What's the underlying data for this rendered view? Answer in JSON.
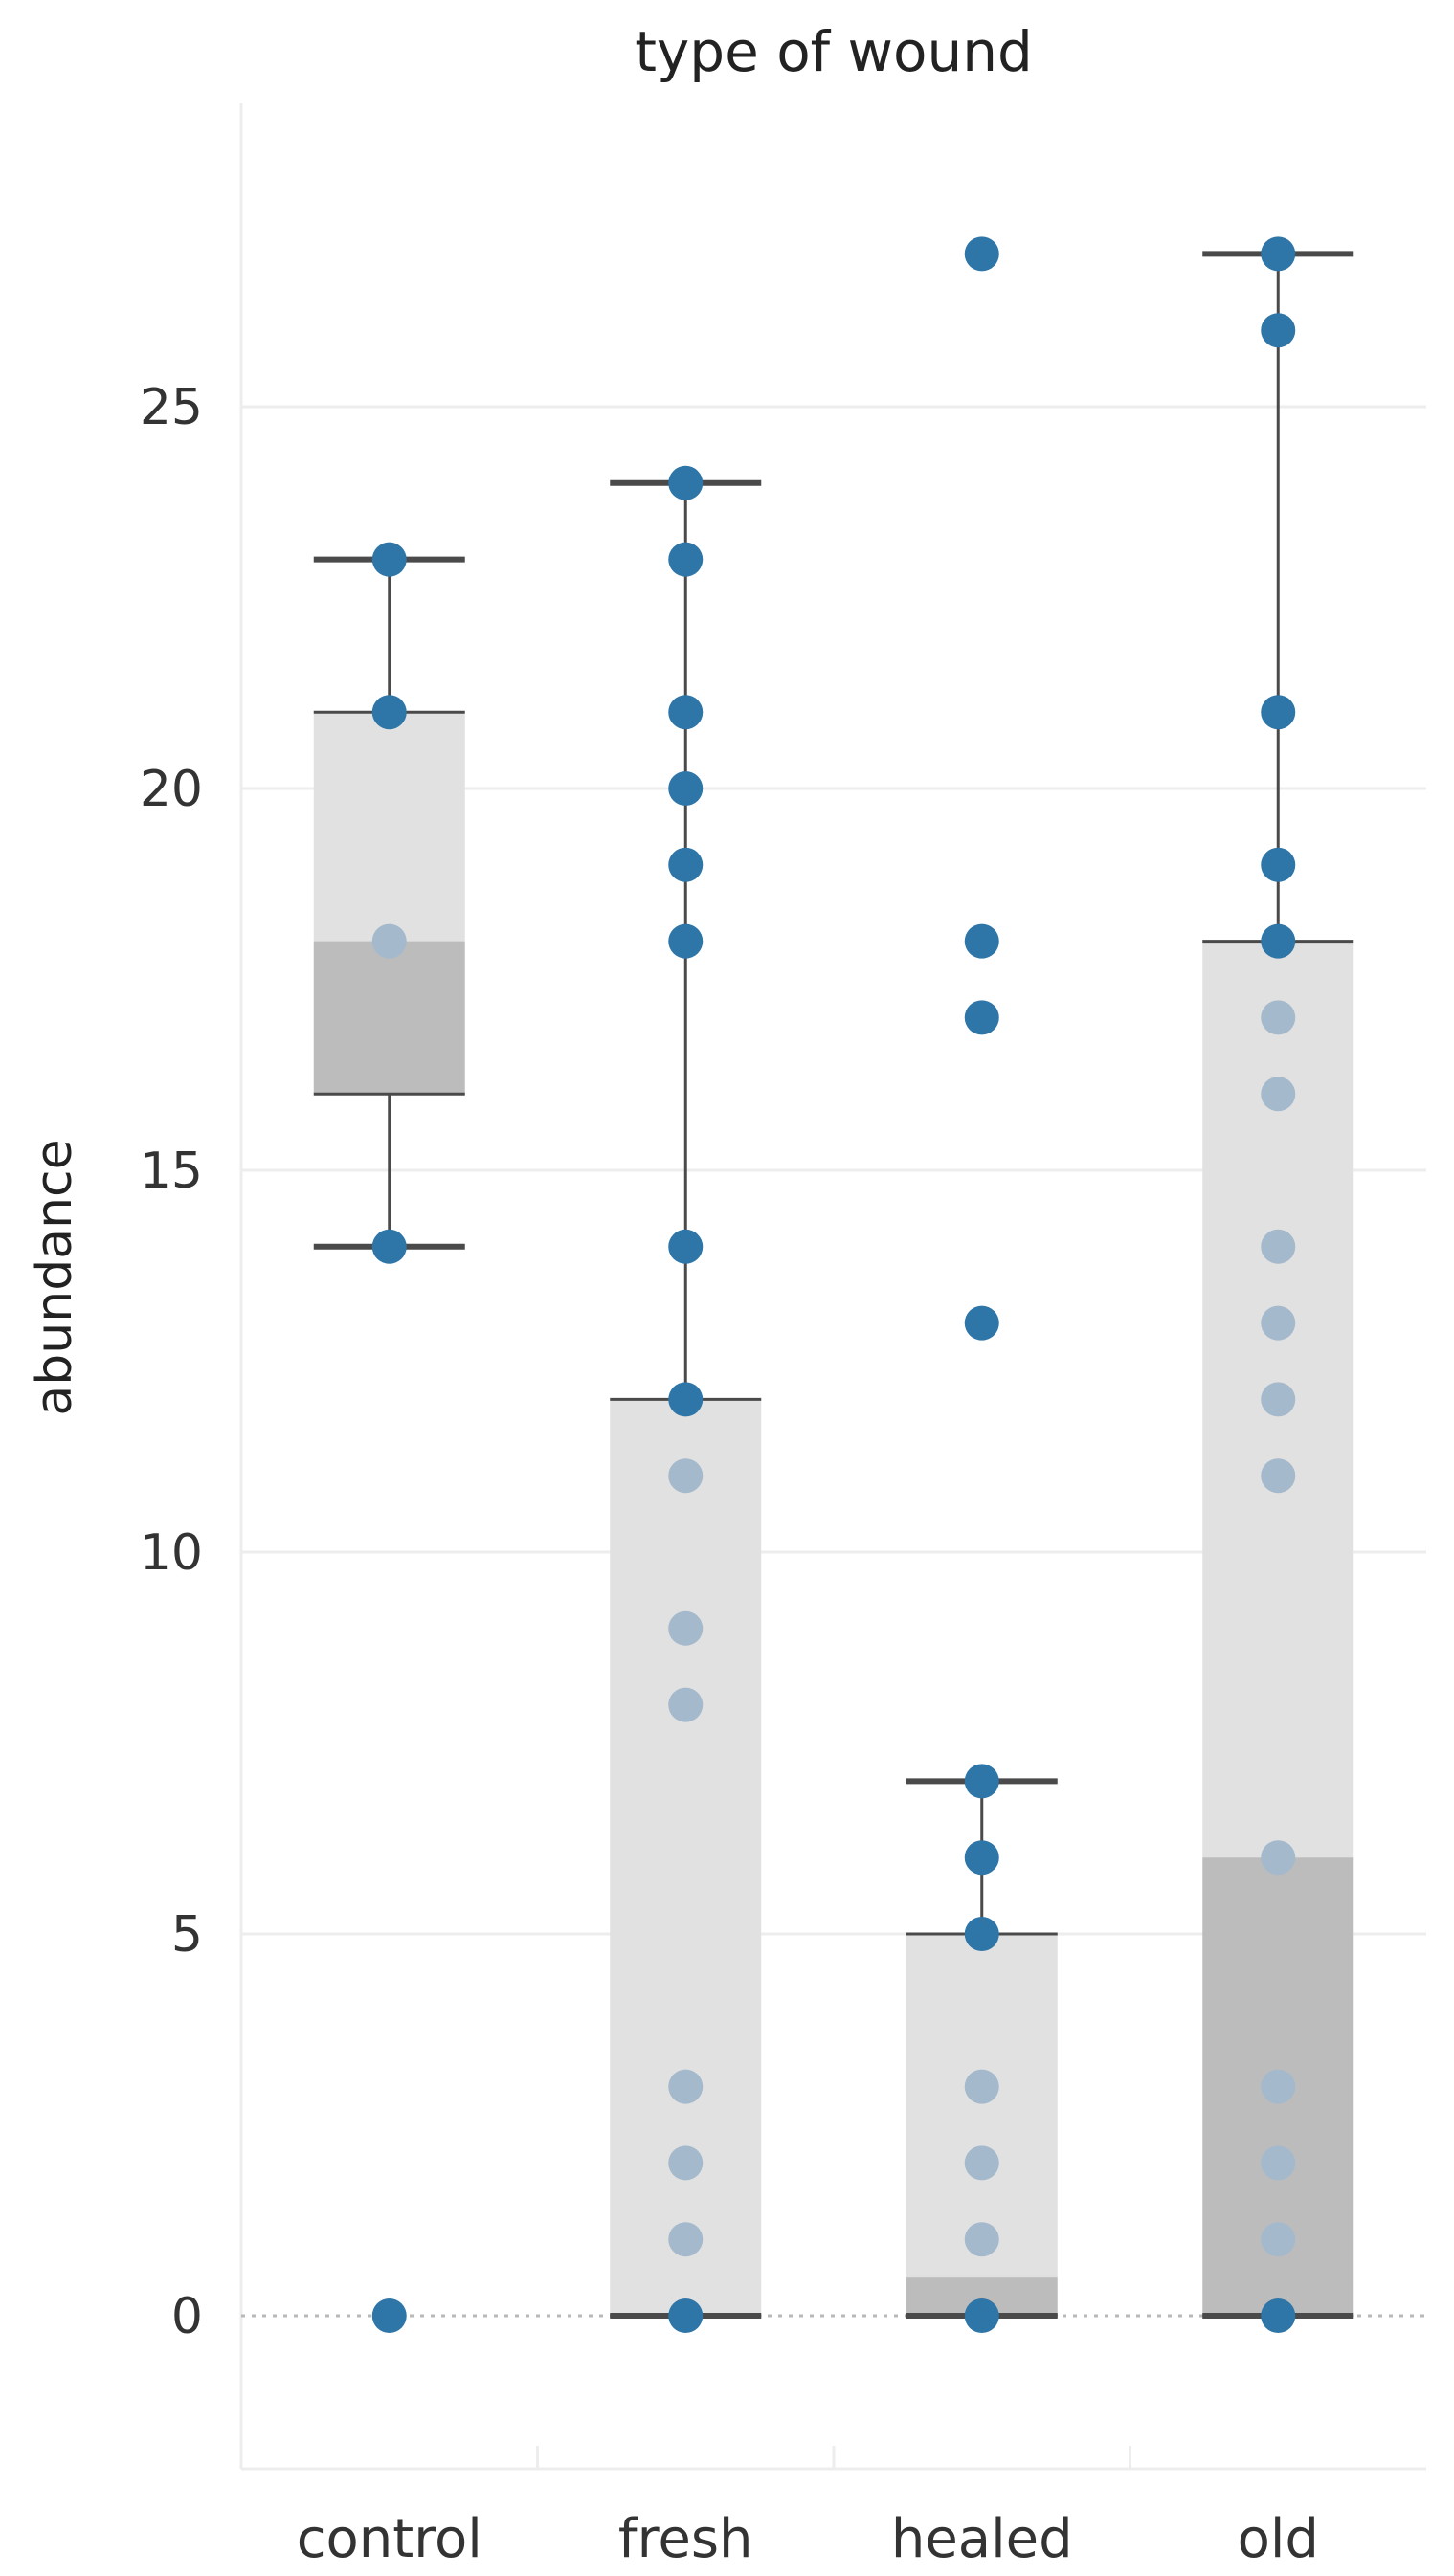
{
  "chart_data": {
    "type": "boxplot",
    "title": "type of wound",
    "xlabel": "",
    "ylabel": "abundance",
    "y_ticks": [
      0,
      5,
      10,
      15,
      20,
      25
    ],
    "ylim": [
      -2,
      30
    ],
    "grid": true,
    "zero_line": "dotted",
    "categories": [
      "control",
      "fresh",
      "healed",
      "old"
    ],
    "boxes": [
      {
        "category": "control",
        "whisker_low": 14,
        "q1": 16,
        "median": 18,
        "q3": 21,
        "whisker_high": 23
      },
      {
        "category": "fresh",
        "whisker_low": 0,
        "q1": 0,
        "median": 0,
        "q3": 12,
        "whisker_high": 24
      },
      {
        "category": "healed",
        "whisker_low": 0,
        "q1": 0,
        "median": 0.5,
        "q3": 5,
        "whisker_high": 7
      },
      {
        "category": "old",
        "whisker_low": 0,
        "q1": 0,
        "median": 6,
        "q3": 18,
        "whisker_high": 27
      }
    ],
    "points": [
      {
        "category": "control",
        "values": [
          0,
          14,
          18,
          21,
          23
        ]
      },
      {
        "category": "fresh",
        "values": [
          0,
          1,
          2,
          3,
          8,
          9,
          11,
          12,
          14,
          18,
          19,
          20,
          21,
          23,
          24
        ]
      },
      {
        "category": "healed",
        "values": [
          0,
          1,
          2,
          3,
          5,
          6,
          7,
          13,
          17,
          18,
          27
        ]
      },
      {
        "category": "old",
        "values": [
          0,
          1,
          2,
          3,
          6,
          11,
          12,
          13,
          14,
          16,
          17,
          18,
          19,
          21,
          26,
          27
        ]
      }
    ],
    "colors": {
      "point": "#2e75a8",
      "point_in_box": "#a4b9cc",
      "box_upper": "#e1e1e1",
      "box_lower": "#bdbcbc",
      "whisker": "#4a4a4a",
      "grid": "#ededed",
      "zero_line": "#b9b9b9"
    }
  }
}
